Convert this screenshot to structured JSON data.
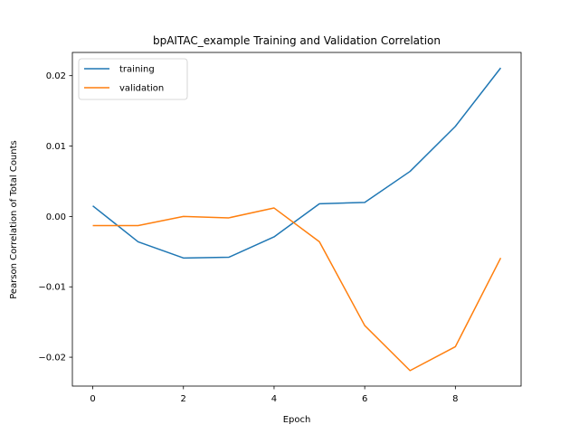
{
  "chart_data": {
    "type": "line",
    "title": "bpAITAC_example  Training and Validation Correlation",
    "xlabel": "Epoch",
    "ylabel": "Pearson Correlation of Total Counts",
    "x": [
      0,
      1,
      2,
      3,
      4,
      5,
      6,
      7,
      8,
      9
    ],
    "xlim": [
      -0.45,
      9.45
    ],
    "ylim": [
      -0.0241,
      0.0233
    ],
    "xticks": [
      0,
      2,
      4,
      6,
      8
    ],
    "xtick_labels": [
      "0",
      "2",
      "4",
      "6",
      "8"
    ],
    "yticks": [
      -0.02,
      -0.01,
      0.0,
      0.01,
      0.02
    ],
    "ytick_labels": [
      "−0.02",
      "−0.01",
      "0.00",
      "0.01",
      "0.02"
    ],
    "grid": false,
    "legend_position": "top-left",
    "series": [
      {
        "name": "training",
        "color": "#1f77b4",
        "values": [
          0.0015,
          -0.0036,
          -0.0059,
          -0.0058,
          -0.0029,
          0.0018,
          0.002,
          0.0064,
          0.0128,
          0.0211
        ]
      },
      {
        "name": "validation",
        "color": "#ff7f0e",
        "values": [
          -0.0013,
          -0.0013,
          0.0,
          -0.0002,
          0.0012,
          -0.0036,
          -0.0155,
          -0.0219,
          -0.0185,
          -0.0059
        ]
      }
    ]
  }
}
